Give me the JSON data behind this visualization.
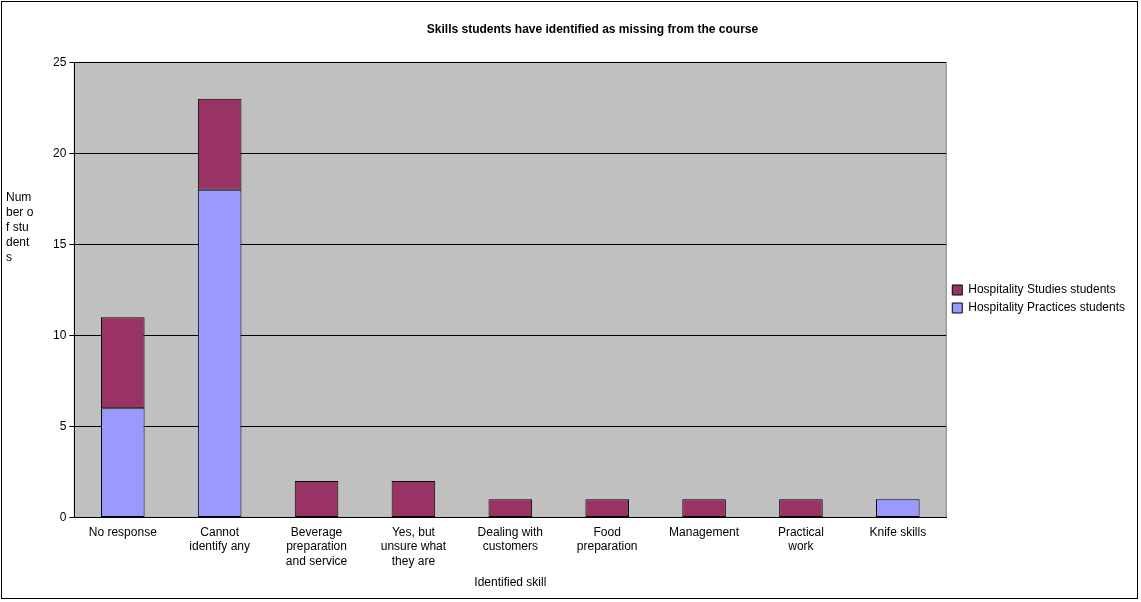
{
  "chart_data": {
    "type": "bar",
    "title": "Skills students have identified as missing from the course",
    "xlabel": "Identified skill",
    "ylabel": "Number of students",
    "categories": [
      "No response",
      "Cannot identify any",
      "Beverage preparation and service",
      "Yes, but unsure what they are",
      "Dealing with customers",
      "Food preparation",
      "Management",
      "Practical work",
      "Knife skills"
    ],
    "series": [
      {
        "name": "Hospitality Practices students",
        "color": "#9999ff",
        "values": [
          6,
          18,
          0,
          0,
          0,
          0,
          0,
          0,
          1
        ]
      },
      {
        "name": "Hospitality Studies students",
        "color": "#993366",
        "values": [
          5,
          5,
          2,
          2,
          1,
          1,
          1,
          1,
          0
        ]
      }
    ],
    "stacked": true,
    "ylim": [
      0,
      25
    ],
    "yticks": [
      0,
      5,
      10,
      15,
      20,
      25
    ],
    "grid": "y",
    "legend": "right"
  }
}
